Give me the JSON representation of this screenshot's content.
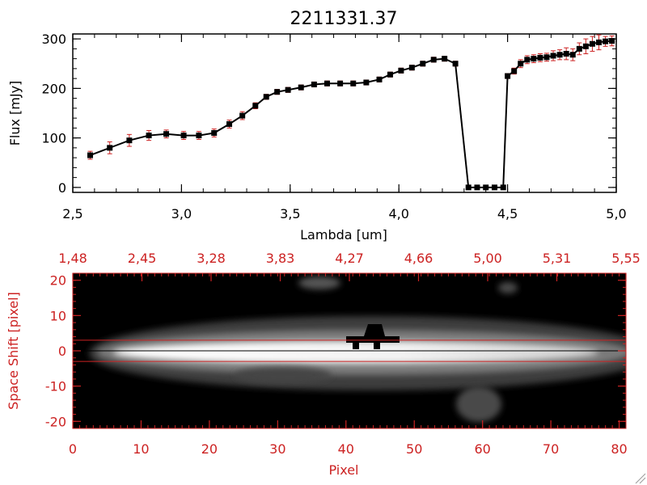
{
  "title": "2211331.37",
  "colors": {
    "line": "#000000",
    "marker": "#000000",
    "errorbar": "#cc2222",
    "accent_red": "#cc2222",
    "image_bg": "#000000"
  },
  "chart_data": [
    {
      "type": "line",
      "title": "2211331.37",
      "xlabel": "Lambda [um]",
      "ylabel": "Flux [mJy]",
      "xlim": [
        2.5,
        5.0
      ],
      "ylim": [
        -10,
        310
      ],
      "xticks": [
        "2.5",
        "3.0",
        "3.5",
        "4.0",
        "4.5",
        "5.0"
      ],
      "yticks": [
        "0",
        "100",
        "200",
        "300"
      ],
      "grid": false,
      "series": [
        {
          "x": [
            2.58,
            2.67,
            2.76,
            2.85,
            2.93,
            3.01,
            3.08,
            3.15,
            3.22,
            3.28,
            3.34,
            3.39,
            3.44,
            3.49,
            3.55,
            3.61,
            3.67,
            3.73,
            3.79,
            3.85,
            3.91,
            3.96,
            4.01,
            4.06,
            4.11,
            4.16,
            4.21,
            4.26,
            4.32,
            4.36,
            4.4,
            4.44,
            4.48,
            4.5,
            4.53,
            4.56,
            4.59,
            4.62,
            4.65,
            4.68,
            4.71,
            4.74,
            4.77,
            4.8,
            4.83,
            4.86,
            4.89,
            4.92,
            4.95,
            4.98
          ],
          "y": [
            65,
            80,
            95,
            105,
            108,
            105,
            105,
            110,
            128,
            145,
            165,
            183,
            193,
            197,
            202,
            208,
            210,
            210,
            210,
            212,
            218,
            228,
            236,
            242,
            250,
            258,
            260,
            250,
            0,
            0,
            0,
            0,
            0,
            225,
            235,
            250,
            258,
            260,
            262,
            263,
            266,
            268,
            270,
            268,
            280,
            285,
            290,
            293,
            295,
            296
          ],
          "yerr": [
            8,
            12,
            12,
            10,
            8,
            8,
            8,
            8,
            8,
            8,
            6,
            5,
            5,
            5,
            5,
            5,
            5,
            5,
            5,
            5,
            5,
            5,
            5,
            5,
            5,
            5,
            5,
            5,
            0,
            0,
            0,
            0,
            0,
            5,
            6,
            8,
            8,
            8,
            8,
            8,
            10,
            10,
            12,
            12,
            12,
            15,
            15,
            15,
            10,
            10
          ]
        }
      ]
    },
    {
      "type": "heatmap",
      "xlabel": "Pixel",
      "ylabel": "Space Shift [pixel]",
      "xlim": [
        0,
        81
      ],
      "ylim": [
        -22,
        22
      ],
      "xticks": [
        "0",
        "10",
        "20",
        "30",
        "40",
        "50",
        "60",
        "70",
        "80"
      ],
      "yticks": [
        "-20",
        "-10",
        "0",
        "10",
        "20"
      ],
      "top_axis_ticks": [
        "1.48",
        "2.45",
        "3.28",
        "3.83",
        "4.27",
        "4.66",
        "5.00",
        "5.31",
        "5.55"
      ],
      "extraction_lines": [
        3,
        -3
      ],
      "center_line": 0
    }
  ]
}
